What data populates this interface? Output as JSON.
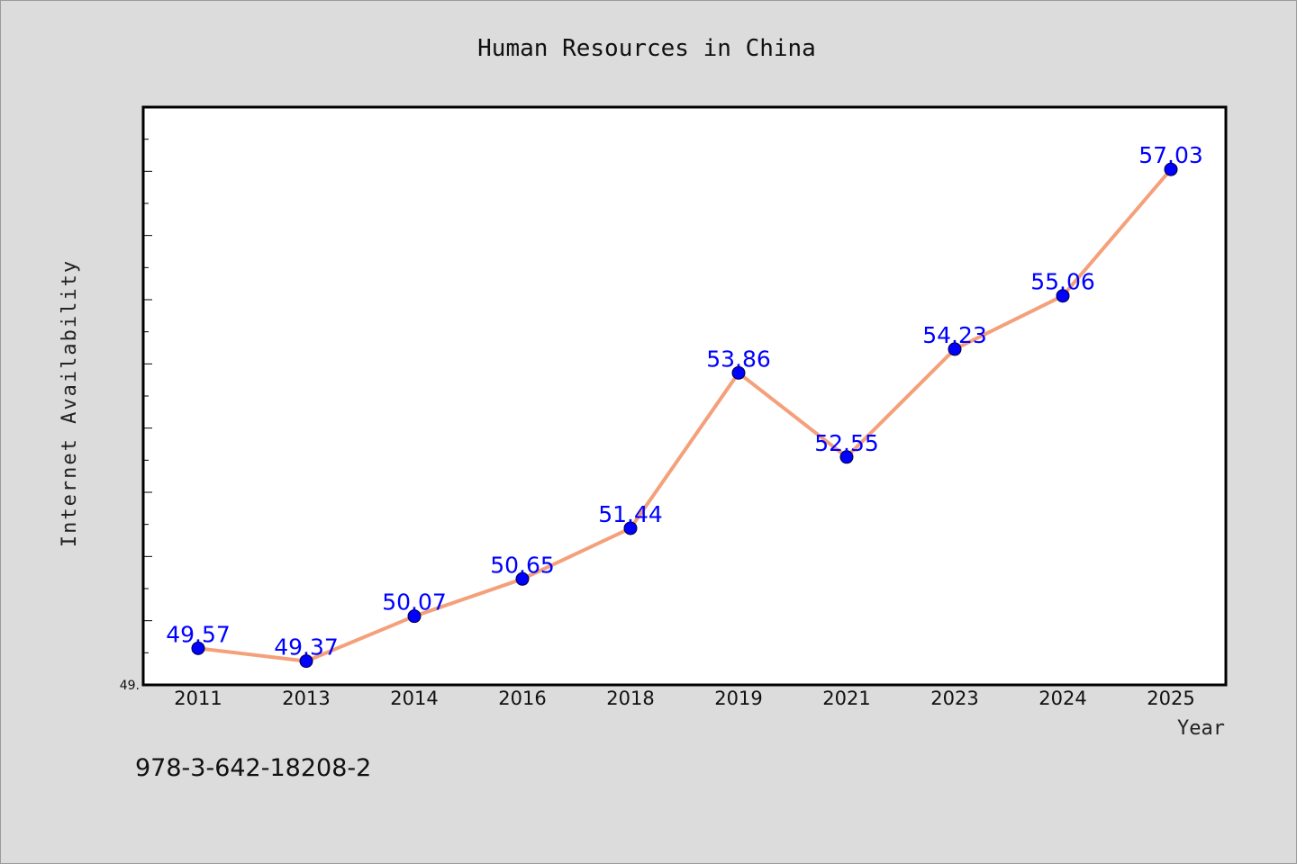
{
  "chart_data": {
    "type": "line",
    "title": "Human Resources in China",
    "xlabel": "Year",
    "ylabel": "Internet Availability",
    "categories": [
      "2011",
      "2013",
      "2014",
      "2016",
      "2018",
      "2019",
      "2021",
      "2023",
      "2024",
      "2025"
    ],
    "series": [
      {
        "values": [
          49.57,
          49.37,
          50.07,
          50.65,
          51.44,
          53.86,
          52.55,
          54.23,
          55.06,
          57.03
        ]
      }
    ],
    "ylim": [
      49.0,
      58.0
    ],
    "y_min_label": "49.",
    "grid": false,
    "colors": {
      "line": "#f4a07a",
      "marker": "#0000ff",
      "data_label": "#0000ff",
      "plot_background": "#ffffff",
      "figure_background": "#dcdcdc"
    }
  },
  "footer": {
    "code": "978-3-642-18208-2"
  }
}
